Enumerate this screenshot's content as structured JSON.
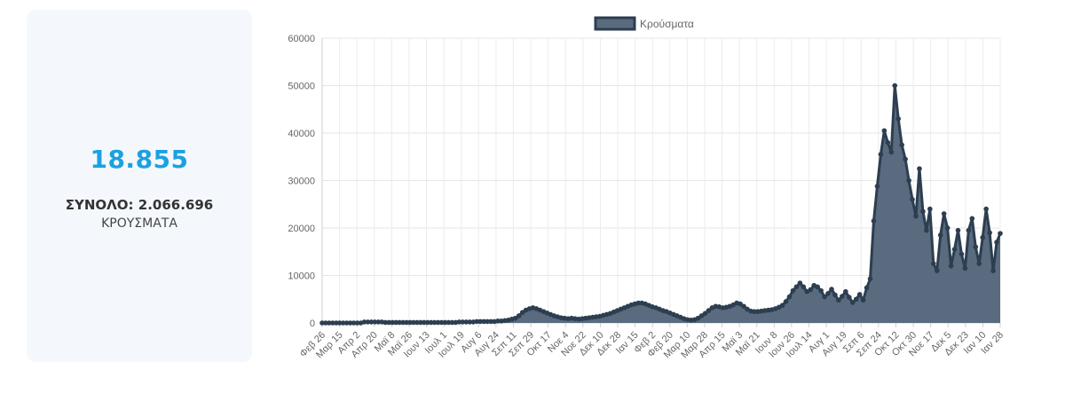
{
  "stats": {
    "new_cases": "18.855",
    "total_line": "ΣΥΝΟΛΟ: 2.066.696",
    "cases_label": "ΚΡΟΥΣΜΑΤΑ"
  },
  "colors": {
    "accent": "#1ba1e2",
    "series_fill": "#5a6b7f",
    "series_line": "#2c3e50",
    "card_bg": "#f4f8fd"
  },
  "chart_data": {
    "type": "area",
    "legend": {
      "position": "top",
      "label": "Κρούσματα"
    },
    "grid": true,
    "ylim": [
      0,
      60000
    ],
    "yticks": [
      "0",
      "10000",
      "20000",
      "30000",
      "40000",
      "50000",
      "60000"
    ],
    "xticks": [
      "Φεβ 26",
      "Μαρ 15",
      "Απρ 2",
      "Απρ 20",
      "Μαϊ 8",
      "Μαϊ 26",
      "Ιουν 13",
      "Ιουλ 1",
      "Ιουλ 19",
      "Αυγ 6",
      "Αυγ 24",
      "Σεπ 11",
      "Σεπ 29",
      "Οκτ 17",
      "Νοε 4",
      "Νοε 22",
      "Δεκ 10",
      "Δεκ 28",
      "Ιαν 15",
      "Φεβ 2",
      "Φεβ 20",
      "Μαρ 10",
      "Μαρ 28",
      "Απρ 15",
      "Μαϊ 3",
      "Μαϊ 21",
      "Ιουν 8",
      "Ιουν 26",
      "Ιουλ 14",
      "Αυγ 1",
      "Αυγ 19",
      "Σεπ 6",
      "Σεπ 24",
      "Οκτ 12",
      "Οκτ 30",
      "Νοε 17",
      "Δεκ 5",
      "Δεκ 23",
      "Ιαν 10",
      "Ιαν 28"
    ],
    "series": [
      {
        "name": "Κρούσματα",
        "values": [
          0,
          0,
          0,
          0,
          0,
          0,
          0,
          0,
          0,
          0,
          0,
          0,
          200,
          200,
          200,
          200,
          200,
          200,
          100,
          100,
          100,
          100,
          100,
          100,
          100,
          100,
          100,
          100,
          100,
          100,
          100,
          100,
          100,
          100,
          100,
          100,
          100,
          100,
          100,
          200,
          200,
          200,
          200,
          200,
          300,
          300,
          300,
          300,
          300,
          300,
          400,
          400,
          500,
          600,
          800,
          1000,
          1500,
          2200,
          2700,
          3000,
          3200,
          3000,
          2700,
          2400,
          2100,
          1800,
          1500,
          1300,
          1100,
          1000,
          900,
          1000,
          900,
          800,
          900,
          1000,
          1100,
          1200,
          1300,
          1400,
          1600,
          1800,
          2000,
          2300,
          2600,
          2900,
          3200,
          3500,
          3800,
          4000,
          4200,
          4200,
          4000,
          3700,
          3400,
          3200,
          2900,
          2600,
          2400,
          2100,
          1800,
          1500,
          1200,
          900,
          700,
          600,
          700,
          1000,
          1500,
          2000,
          2600,
          3200,
          3500,
          3400,
          3200,
          3300,
          3500,
          3800,
          4200,
          4000,
          3500,
          2900,
          2500,
          2400,
          2400,
          2500,
          2600,
          2700,
          2800,
          3000,
          3300,
          3700,
          4500,
          5500,
          6800,
          7600,
          8400,
          7600,
          6600,
          7000,
          7900,
          7600,
          6800,
          5500,
          6200,
          7100,
          5900,
          4800,
          5600,
          6600,
          5400,
          4300,
          5000,
          6000,
          4800,
          7400,
          9300,
          21500,
          28800,
          35500,
          40500,
          38000,
          36000,
          50000,
          43000,
          37500,
          34500,
          30000,
          26000,
          22500,
          32500,
          23500,
          19500,
          24000,
          12500,
          11000,
          18500,
          23000,
          20000,
          12000,
          15500,
          19500,
          14500,
          11500,
          19500,
          22000,
          16000,
          12500,
          18000,
          24000,
          19000,
          11000,
          17000,
          18855
        ]
      }
    ]
  }
}
